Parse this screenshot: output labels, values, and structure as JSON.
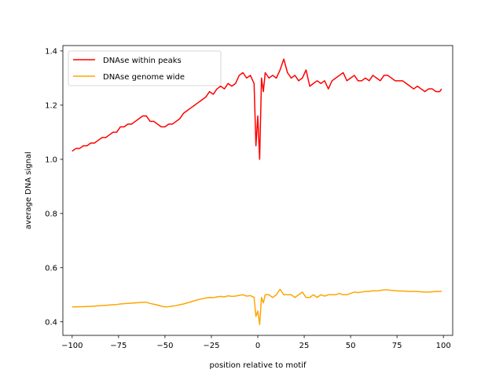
{
  "chart_data": {
    "type": "line",
    "title": "",
    "xlabel": "position relative to motif",
    "ylabel": "average DNA signal",
    "xlim": [
      -105,
      105
    ],
    "ylim": [
      0.35,
      1.42
    ],
    "xticks": [
      -100,
      -75,
      -50,
      -25,
      0,
      25,
      50,
      75,
      100
    ],
    "xtick_labels": [
      "−100",
      "−75",
      "−50",
      "−25",
      "0",
      "25",
      "50",
      "75",
      "100"
    ],
    "yticks": [
      0.4,
      0.6,
      0.8,
      1.0,
      1.2,
      1.4
    ],
    "ytick_labels": [
      "0.4",
      "0.6",
      "0.8",
      "1.0",
      "1.2",
      "1.4"
    ],
    "grid": false,
    "legend_position": "top-left",
    "series": [
      {
        "name": "DNAse within peaks",
        "color": "#ff0000",
        "x": [
          -100,
          -98,
          -96,
          -94,
          -92,
          -90,
          -88,
          -86,
          -84,
          -82,
          -80,
          -78,
          -76,
          -74,
          -72,
          -70,
          -68,
          -66,
          -64,
          -62,
          -60,
          -58,
          -56,
          -54,
          -52,
          -50,
          -48,
          -46,
          -44,
          -42,
          -40,
          -38,
          -36,
          -34,
          -32,
          -30,
          -28,
          -26,
          -24,
          -22,
          -20,
          -18,
          -16,
          -14,
          -12,
          -10,
          -8,
          -6,
          -4,
          -2,
          -1,
          0,
          1,
          2,
          3,
          4,
          6,
          8,
          10,
          12,
          14,
          16,
          18,
          20,
          22,
          24,
          26,
          28,
          30,
          32,
          34,
          36,
          38,
          40,
          42,
          44,
          46,
          48,
          50,
          52,
          54,
          56,
          58,
          60,
          62,
          64,
          66,
          68,
          70,
          72,
          74,
          76,
          78,
          80,
          82,
          84,
          86,
          88,
          90,
          92,
          94,
          96,
          98,
          99
        ],
        "y": [
          1.03,
          1.04,
          1.04,
          1.05,
          1.05,
          1.06,
          1.06,
          1.07,
          1.08,
          1.08,
          1.09,
          1.1,
          1.1,
          1.12,
          1.12,
          1.13,
          1.13,
          1.14,
          1.15,
          1.16,
          1.16,
          1.14,
          1.14,
          1.13,
          1.12,
          1.12,
          1.13,
          1.13,
          1.14,
          1.15,
          1.17,
          1.18,
          1.19,
          1.2,
          1.21,
          1.22,
          1.23,
          1.25,
          1.24,
          1.26,
          1.27,
          1.26,
          1.28,
          1.27,
          1.28,
          1.31,
          1.32,
          1.3,
          1.31,
          1.28,
          1.05,
          1.16,
          1.0,
          1.3,
          1.25,
          1.32,
          1.3,
          1.31,
          1.3,
          1.33,
          1.37,
          1.32,
          1.3,
          1.31,
          1.29,
          1.3,
          1.33,
          1.27,
          1.28,
          1.29,
          1.28,
          1.29,
          1.26,
          1.29,
          1.3,
          1.31,
          1.32,
          1.29,
          1.3,
          1.31,
          1.29,
          1.29,
          1.3,
          1.29,
          1.31,
          1.3,
          1.29,
          1.31,
          1.31,
          1.3,
          1.29,
          1.29,
          1.29,
          1.28,
          1.27,
          1.26,
          1.27,
          1.26,
          1.25,
          1.26,
          1.26,
          1.25,
          1.25,
          1.26
        ]
      },
      {
        "name": "DNAse genome wide",
        "color": "#ffa500",
        "x": [
          -100,
          -98,
          -96,
          -94,
          -92,
          -90,
          -88,
          -86,
          -84,
          -82,
          -80,
          -78,
          -76,
          -74,
          -72,
          -70,
          -68,
          -66,
          -64,
          -62,
          -60,
          -58,
          -56,
          -54,
          -52,
          -50,
          -48,
          -46,
          -44,
          -42,
          -40,
          -38,
          -36,
          -34,
          -32,
          -30,
          -28,
          -26,
          -24,
          -22,
          -20,
          -18,
          -16,
          -14,
          -12,
          -10,
          -8,
          -6,
          -4,
          -2,
          -1,
          0,
          1,
          2,
          3,
          4,
          6,
          8,
          10,
          12,
          14,
          16,
          18,
          20,
          22,
          24,
          26,
          28,
          30,
          32,
          34,
          36,
          38,
          40,
          42,
          44,
          46,
          48,
          50,
          52,
          54,
          56,
          58,
          60,
          62,
          64,
          66,
          68,
          70,
          72,
          74,
          76,
          78,
          80,
          82,
          84,
          86,
          88,
          90,
          92,
          94,
          96,
          98,
          99
        ],
        "y": [
          0.455,
          0.455,
          0.456,
          0.456,
          0.457,
          0.457,
          0.458,
          0.459,
          0.46,
          0.461,
          0.462,
          0.463,
          0.464,
          0.466,
          0.467,
          0.468,
          0.469,
          0.47,
          0.471,
          0.472,
          0.472,
          0.468,
          0.465,
          0.462,
          0.458,
          0.455,
          0.456,
          0.458,
          0.46,
          0.463,
          0.466,
          0.47,
          0.474,
          0.478,
          0.482,
          0.485,
          0.488,
          0.49,
          0.489,
          0.492,
          0.494,
          0.492,
          0.496,
          0.494,
          0.495,
          0.498,
          0.5,
          0.495,
          0.497,
          0.49,
          0.42,
          0.44,
          0.39,
          0.49,
          0.47,
          0.5,
          0.5,
          0.49,
          0.5,
          0.52,
          0.5,
          0.5,
          0.5,
          0.49,
          0.5,
          0.51,
          0.49,
          0.49,
          0.5,
          0.49,
          0.5,
          0.495,
          0.5,
          0.5,
          0.5,
          0.505,
          0.5,
          0.5,
          0.505,
          0.51,
          0.508,
          0.51,
          0.512,
          0.512,
          0.515,
          0.514,
          0.516,
          0.518,
          0.518,
          0.516,
          0.515,
          0.514,
          0.514,
          0.513,
          0.512,
          0.512,
          0.512,
          0.511,
          0.51,
          0.51,
          0.511,
          0.512,
          0.512,
          0.513
        ]
      }
    ]
  }
}
